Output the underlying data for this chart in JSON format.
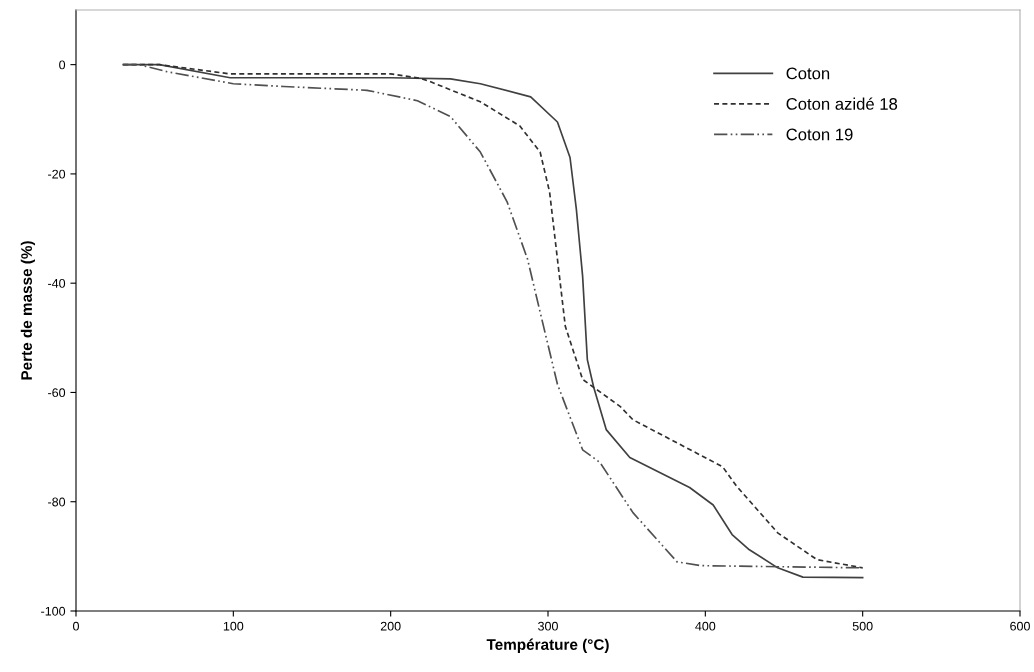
{
  "chart_data": {
    "type": "line",
    "xlabel": "Température (°C)",
    "ylabel": "Perte de masse (%)",
    "xlim": [
      0,
      600
    ],
    "xticks": [
      0,
      100,
      200,
      300,
      400,
      500,
      600
    ],
    "ylim": [
      -100,
      10
    ],
    "yticks": [
      -100,
      -80,
      -60,
      -40,
      -20,
      0
    ],
    "grid": false,
    "legend": "top right",
    "marker": "none",
    "series": [
      {
        "name": "Coton",
        "color": "#404040",
        "line_style": "solid",
        "x": [
          30,
          53,
          98,
          200,
          238,
          257,
          289,
          306,
          314,
          318,
          322,
          325,
          329,
          337,
          352,
          390,
          405,
          417,
          428,
          446,
          462,
          500
        ],
        "values": [
          0,
          0,
          -2.4,
          -2.4,
          -2.6,
          -3.5,
          -5.9,
          -10.5,
          -17,
          -26.4,
          -38.7,
          -54,
          -59,
          -66.8,
          -71.9,
          -77.4,
          -80.6,
          -86,
          -88.8,
          -92.1,
          -93.8,
          -93.9
        ]
      },
      {
        "name": "Coton azidé 18",
        "color": "#303030",
        "line_style": "dashed",
        "x": [
          30,
          53,
          98,
          200,
          219,
          225,
          257,
          282,
          295,
          301,
          306,
          311,
          322,
          346,
          354,
          411,
          420,
          446,
          471,
          500
        ],
        "values": [
          0,
          0,
          -1.7,
          -1.7,
          -2.5,
          -3.1,
          -6.8,
          -11.2,
          -16,
          -23.3,
          -35.6,
          -47.9,
          -57.6,
          -62.6,
          -65,
          -73.6,
          -77.2,
          -85.7,
          -90.6,
          -92.1
        ]
      },
      {
        "name": "Coton 19",
        "color": "#505050",
        "line_style": "dashdot",
        "x": [
          30,
          40,
          58,
          100,
          132,
          185,
          217,
          238,
          257,
          274,
          287,
          295,
          306,
          322,
          333,
          354,
          382,
          397,
          500
        ],
        "values": [
          0,
          0,
          -1.3,
          -3.5,
          -4.0,
          -4.7,
          -6.6,
          -9.5,
          -16,
          -25.1,
          -35.6,
          -45.3,
          -58.5,
          -70.5,
          -72.8,
          -82,
          -91,
          -91.7,
          -92.1
        ]
      }
    ]
  }
}
